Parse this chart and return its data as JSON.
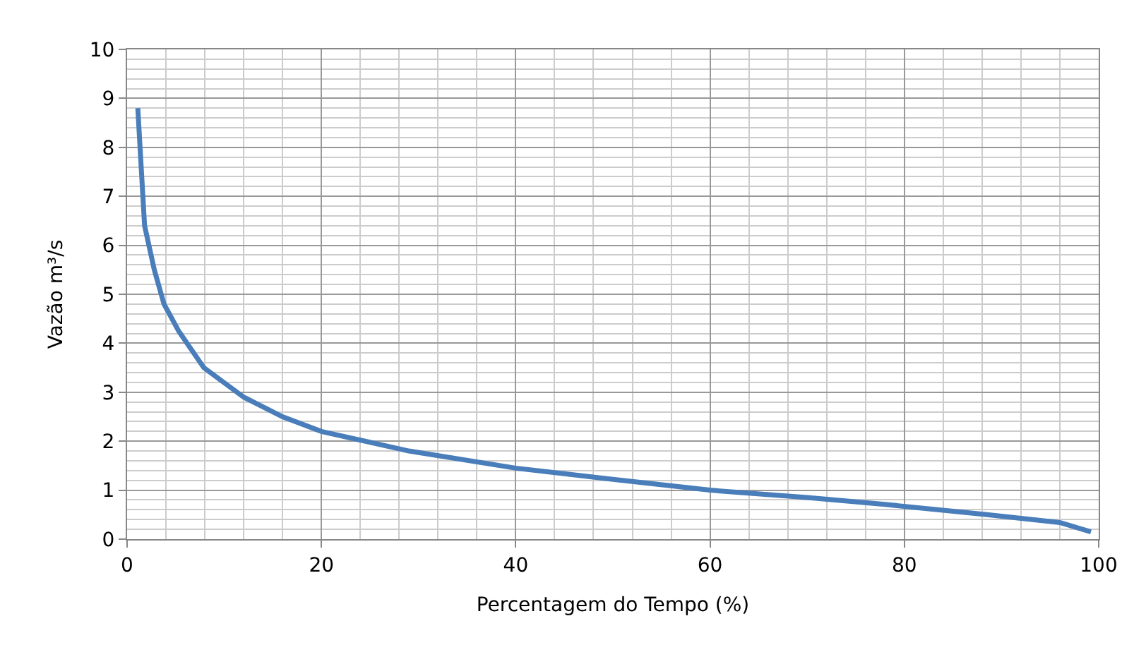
{
  "chart_data": {
    "type": "line",
    "xlabel": "Percentagem do Tempo (%)",
    "ylabel": "Vazão m³/s",
    "x": [
      1.1,
      1.8,
      2.8,
      3.8,
      5.3,
      7.9,
      12,
      16,
      20,
      29,
      40,
      50,
      60,
      70,
      78,
      88.5,
      96,
      99.2
    ],
    "series": [
      {
        "color": "#4a7ebb",
        "values": [
          8.8,
          6.4,
          5.5,
          4.8,
          4.25,
          3.5,
          2.9,
          2.5,
          2.2,
          1.8,
          1.45,
          1.22,
          1.0,
          0.85,
          0.71,
          0.5,
          0.34,
          0.15
        ]
      }
    ],
    "xlim": [
      0,
      100
    ],
    "xticks": [
      0,
      20,
      40,
      60,
      80,
      100
    ],
    "ylim": [
      0,
      10
    ],
    "yticks": [
      0,
      1,
      2,
      3,
      4,
      5,
      6,
      7,
      8,
      9,
      10
    ],
    "grid": true,
    "legend": false,
    "marker": "none",
    "line_style": "solid"
  }
}
